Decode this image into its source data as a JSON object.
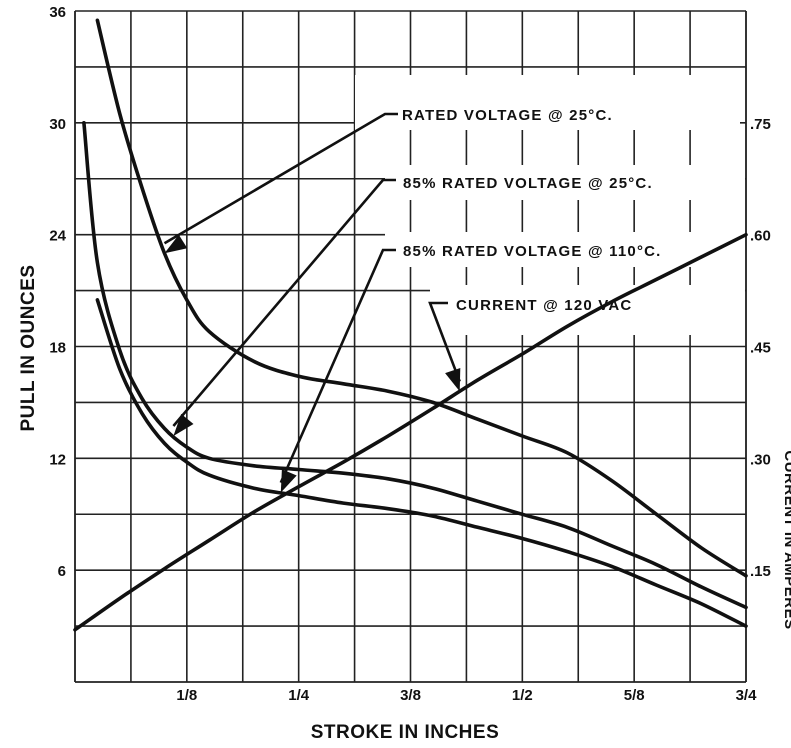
{
  "chart_data": {
    "type": "line",
    "xlabel": "STROKE IN INCHES",
    "ylabel": "PULL IN OUNCES",
    "y2label": "CURRENT IN AMPERES",
    "xlim": [
      0,
      0.75
    ],
    "ylim": [
      0,
      36
    ],
    "y2lim": [
      0,
      0.9
    ],
    "x_ticks": [
      {
        "value": 0.125,
        "label": "1/8"
      },
      {
        "value": 0.25,
        "label": "1/4"
      },
      {
        "value": 0.375,
        "label": "3/8"
      },
      {
        "value": 0.5,
        "label": "1/2"
      },
      {
        "value": 0.625,
        "label": "5/8"
      },
      {
        "value": 0.75,
        "label": "3/4"
      }
    ],
    "y_ticks": [
      {
        "value": 6,
        "label": "6"
      },
      {
        "value": 12,
        "label": "12"
      },
      {
        "value": 18,
        "label": "18"
      },
      {
        "value": 24,
        "label": "24"
      },
      {
        "value": 30,
        "label": "30"
      },
      {
        "value": 36,
        "label": "36"
      }
    ],
    "y2_ticks": [
      {
        "value": 0.15,
        "label": ".15"
      },
      {
        "value": 0.3,
        "label": ".30"
      },
      {
        "value": 0.45,
        "label": ".45"
      },
      {
        "value": 0.6,
        "label": ".60"
      },
      {
        "value": 0.75,
        "label": ".75"
      }
    ],
    "grid": true,
    "series": [
      {
        "name": "RATED VOLTAGE @ 25°C.",
        "axis": "left",
        "x": [
          0.025,
          0.05,
          0.075,
          0.1,
          0.125,
          0.15,
          0.2,
          0.25,
          0.3,
          0.35,
          0.4,
          0.45,
          0.5,
          0.55,
          0.6,
          0.65,
          0.7,
          0.75
        ],
        "y": [
          35.5,
          30.5,
          26.5,
          23.0,
          20.5,
          18.8,
          17.2,
          16.4,
          16.0,
          15.6,
          15.0,
          14.1,
          13.2,
          12.3,
          10.8,
          9.0,
          7.2,
          5.7
        ]
      },
      {
        "name": "85% RATED VOLTAGE @ 25°C.",
        "axis": "left",
        "x": [
          0.01,
          0.025,
          0.05,
          0.075,
          0.1,
          0.125,
          0.15,
          0.2,
          0.25,
          0.3,
          0.35,
          0.4,
          0.45,
          0.5,
          0.55,
          0.6,
          0.65,
          0.7,
          0.75
        ],
        "y": [
          30.0,
          22.5,
          17.8,
          15.2,
          13.6,
          12.6,
          12.0,
          11.6,
          11.4,
          11.2,
          10.9,
          10.4,
          9.7,
          9.0,
          8.3,
          7.3,
          6.3,
          5.1,
          4.0
        ]
      },
      {
        "name": "85% RATED VOLTAGE @ 110°C.",
        "axis": "left",
        "x": [
          0.025,
          0.05,
          0.075,
          0.1,
          0.125,
          0.15,
          0.2,
          0.25,
          0.3,
          0.35,
          0.4,
          0.45,
          0.5,
          0.55,
          0.6,
          0.65,
          0.7,
          0.75
        ],
        "y": [
          20.5,
          16.8,
          14.4,
          12.8,
          11.8,
          11.1,
          10.4,
          10.0,
          9.6,
          9.3,
          8.9,
          8.3,
          7.7,
          7.0,
          6.2,
          5.2,
          4.2,
          3.0
        ]
      },
      {
        "name": "CURRENT @ 120 VAC",
        "axis": "right",
        "x": [
          0.0,
          0.05,
          0.1,
          0.15,
          0.2,
          0.25,
          0.3,
          0.35,
          0.4,
          0.45,
          0.5,
          0.55,
          0.6,
          0.65,
          0.7,
          0.75
        ],
        "y": [
          0.07,
          0.112,
          0.152,
          0.19,
          0.228,
          0.262,
          0.295,
          0.33,
          0.367,
          0.405,
          0.44,
          0.477,
          0.51,
          0.54,
          0.57,
          0.6
        ]
      }
    ]
  }
}
